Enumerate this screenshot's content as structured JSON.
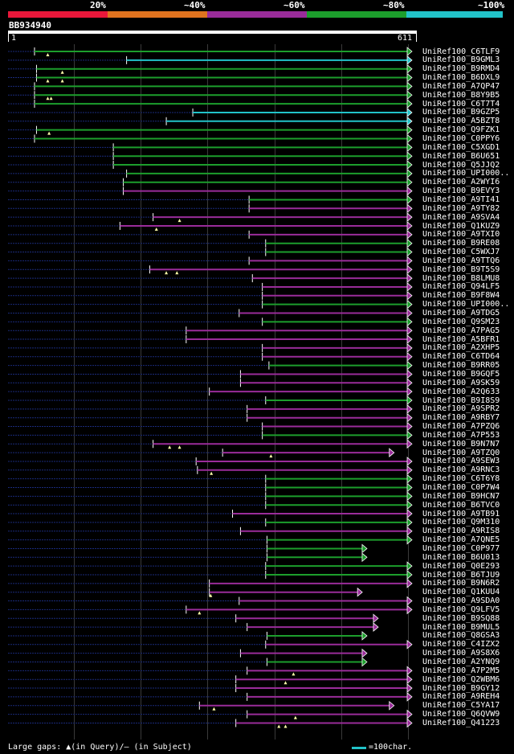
{
  "identity_bands": [
    {
      "label": "20%",
      "color": "#e8173a"
    },
    {
      "label": "~40%",
      "color": "#e0731f"
    },
    {
      "label": "~60%",
      "color": "#9a2c9a"
    },
    {
      "label": "~80%",
      "color": "#1c9e2c"
    },
    {
      "label": "~100%",
      "color": "#22c3c9"
    }
  ],
  "query": {
    "id": "BB934940",
    "start": "1",
    "end": "611",
    "length": 611
  },
  "legend": {
    "gaps_text": "Large gaps: ▲(in Query)/– (in Subject)",
    "scale_text": "=100char."
  },
  "hits": [
    {
      "name": "UniRef100_C6TLF9",
      "start": 41,
      "end": 611,
      "color": "green",
      "arrow": "right",
      "gaps": [
        [
          200,
          0.05
        ]
      ],
      "query_gaps": [
        61
      ]
    },
    {
      "name": "UniRef100_B9GML3",
      "start": 180,
      "end": 611,
      "color": "cyan",
      "arrow": "right",
      "gaps": [],
      "query_gaps": []
    },
    {
      "name": "UniRef100_B9RMD4",
      "start": 44,
      "end": 611,
      "color": "green",
      "arrow": "right",
      "gaps": [
        [
          200,
          0.05
        ]
      ],
      "query_gaps": [
        83
      ]
    },
    {
      "name": "UniRef100_B6DXL9",
      "start": 44,
      "end": 611,
      "color": "green",
      "arrow": "right",
      "gaps": [
        [
          200,
          0.05
        ]
      ],
      "query_gaps": [
        61,
        83
      ]
    },
    {
      "name": "UniRef100_A7QP47",
      "start": 41,
      "end": 611,
      "color": "green",
      "arrow": "right",
      "gaps": [
        [
          200,
          0.05
        ]
      ],
      "query_gaps": []
    },
    {
      "name": "UniRef100_B8Y9B5",
      "start": 41,
      "end": 611,
      "color": "green",
      "arrow": "right",
      "gaps": [
        [
          200,
          0.05
        ]
      ],
      "query_gaps": [
        61,
        66
      ]
    },
    {
      "name": "UniRef100_C6T7T4",
      "start": 41,
      "end": 611,
      "color": "green",
      "arrow": "right",
      "gaps": [
        [
          200,
          0.05
        ]
      ],
      "query_gaps": []
    },
    {
      "name": "UniRef100_B9GZP5",
      "start": 280,
      "end": 611,
      "color": "cyan",
      "arrow": "right",
      "gaps": [],
      "query_gaps": []
    },
    {
      "name": "UniRef100_A5BZT8",
      "start": 240,
      "end": 611,
      "color": "cyan",
      "arrow": "right",
      "gaps": [],
      "query_gaps": []
    },
    {
      "name": "UniRef100_Q9FZK1",
      "start": 44,
      "end": 611,
      "color": "green",
      "arrow": "right",
      "gaps": [
        [
          200,
          0.05
        ]
      ],
      "query_gaps": [
        63
      ]
    },
    {
      "name": "UniRef100_C0PPY6",
      "start": 41,
      "end": 611,
      "color": "green",
      "arrow": "right",
      "gaps": [
        [
          200,
          0.05
        ]
      ],
      "query_gaps": []
    },
    {
      "name": "UniRef100_C5XGD1",
      "start": 160,
      "end": 611,
      "color": "green",
      "arrow": "right",
      "gaps": [],
      "query_gaps": []
    },
    {
      "name": "UniRef100_B6U651",
      "start": 160,
      "end": 611,
      "color": "green",
      "arrow": "right",
      "gaps": [],
      "query_gaps": []
    },
    {
      "name": "UniRef100_Q5JJQ2",
      "start": 160,
      "end": 611,
      "color": "green",
      "arrow": "right",
      "gaps": [],
      "query_gaps": []
    },
    {
      "name": "UniRef100_UPI000..",
      "start": 180,
      "end": 611,
      "color": "green",
      "arrow": "right",
      "gaps": [],
      "query_gaps": []
    },
    {
      "name": "UniRef100_A2WYI6",
      "start": 175,
      "end": 611,
      "color": "green",
      "arrow": "right",
      "gaps": [],
      "query_gaps": []
    },
    {
      "name": "UniRef100_B9EVY3",
      "start": 175,
      "end": 611,
      "color": "purple",
      "arrow": "right",
      "gaps": [
        [
          235,
          0.05
        ]
      ],
      "query_gaps": []
    },
    {
      "name": "UniRef100_A9TI41",
      "start": 365,
      "end": 611,
      "color": "green",
      "arrow": "right",
      "gaps": [],
      "query_gaps": []
    },
    {
      "name": "UniRef100_A9TY82",
      "start": 365,
      "end": 611,
      "color": "purple",
      "arrow": "right",
      "gaps": [],
      "query_gaps": []
    },
    {
      "name": "UniRef100_A9SVA4",
      "start": 220,
      "end": 611,
      "color": "purple",
      "arrow": "right",
      "gaps": [],
      "query_gaps": [
        260
      ]
    },
    {
      "name": "UniRef100_Q1KUZ9",
      "start": 170,
      "end": 611,
      "color": "purple",
      "arrow": "right",
      "gaps": [],
      "query_gaps": [
        225
      ]
    },
    {
      "name": "UniRef100_A9TXI0",
      "start": 365,
      "end": 611,
      "color": "purple",
      "arrow": "right",
      "gaps": [],
      "query_gaps": []
    },
    {
      "name": "UniRef100_B9RE08",
      "start": 390,
      "end": 611,
      "color": "green",
      "arrow": "right",
      "gaps": [],
      "query_gaps": []
    },
    {
      "name": "UniRef100_C5WXJ7",
      "start": 390,
      "end": 611,
      "color": "green",
      "arrow": "right",
      "gaps": [],
      "query_gaps": []
    },
    {
      "name": "UniRef100_A9TTQ6",
      "start": 365,
      "end": 611,
      "color": "purple",
      "arrow": "right",
      "gaps": [],
      "query_gaps": []
    },
    {
      "name": "UniRef100_B9T5S9",
      "start": 215,
      "end": 611,
      "color": "purple",
      "arrow": "right",
      "gaps": [],
      "query_gaps": [
        240,
        256
      ]
    },
    {
      "name": "UniRef100_B8LMU8",
      "start": 370,
      "end": 611,
      "color": "purple",
      "arrow": "right",
      "gaps": [],
      "query_gaps": []
    },
    {
      "name": "UniRef100_Q94LF5",
      "start": 385,
      "end": 611,
      "color": "purple",
      "arrow": "right",
      "gaps": [],
      "query_gaps": []
    },
    {
      "name": "UniRef100_B9F8W4",
      "start": 385,
      "end": 611,
      "color": "purple",
      "arrow": "right",
      "gaps": [],
      "query_gaps": []
    },
    {
      "name": "UniRef100_UPI000..",
      "start": 385,
      "end": 611,
      "color": "green",
      "arrow": "right",
      "gaps": [],
      "query_gaps": []
    },
    {
      "name": "UniRef100_A9TDG5",
      "start": 350,
      "end": 611,
      "color": "purple",
      "arrow": "right",
      "gaps": [],
      "query_gaps": []
    },
    {
      "name": "UniRef100_Q9SM23",
      "start": 385,
      "end": 611,
      "color": "green",
      "arrow": "right",
      "gaps": [],
      "query_gaps": []
    },
    {
      "name": "UniRef100_A7PAG5",
      "start": 270,
      "end": 611,
      "color": "purple",
      "arrow": "right",
      "gaps": [],
      "query_gaps": []
    },
    {
      "name": "UniRef100_A5BFR1",
      "start": 270,
      "end": 611,
      "color": "purple",
      "arrow": "right",
      "gaps": [],
      "query_gaps": []
    },
    {
      "name": "UniRef100_A2XHP5",
      "start": 385,
      "end": 611,
      "color": "purple",
      "arrow": "right",
      "gaps": [],
      "query_gaps": []
    },
    {
      "name": "UniRef100_C6TD64",
      "start": 385,
      "end": 611,
      "color": "purple",
      "arrow": "right",
      "gaps": [],
      "query_gaps": []
    },
    {
      "name": "UniRef100_B9RR05",
      "start": 395,
      "end": 611,
      "color": "green",
      "arrow": "right",
      "gaps": [],
      "query_gaps": []
    },
    {
      "name": "UniRef100_B9GQF5",
      "start": 352,
      "end": 611,
      "color": "purple",
      "arrow": "right",
      "gaps": [],
      "query_gaps": []
    },
    {
      "name": "UniRef100_A9SK59",
      "start": 352,
      "end": 611,
      "color": "purple",
      "arrow": "right",
      "gaps": [],
      "query_gaps": []
    },
    {
      "name": "UniRef100_A2Q633",
      "start": 305,
      "end": 611,
      "color": "purple",
      "arrow": "right",
      "gaps": [],
      "query_gaps": []
    },
    {
      "name": "UniRef100_B9I8S9",
      "start": 390,
      "end": 611,
      "color": "green",
      "arrow": "right",
      "gaps": [],
      "query_gaps": []
    },
    {
      "name": "UniRef100_A9SPR2",
      "start": 362,
      "end": 611,
      "color": "purple",
      "arrow": "right",
      "gaps": [],
      "query_gaps": []
    },
    {
      "name": "UniRef100_A9RBY7",
      "start": 362,
      "end": 611,
      "color": "purple",
      "arrow": "right",
      "gaps": [],
      "query_gaps": []
    },
    {
      "name": "UniRef100_A7PZQ6",
      "start": 385,
      "end": 611,
      "color": "purple",
      "arrow": "right",
      "gaps": [],
      "query_gaps": []
    },
    {
      "name": "UniRef100_A7P553",
      "start": 385,
      "end": 611,
      "color": "green",
      "arrow": "right",
      "gaps": [],
      "query_gaps": []
    },
    {
      "name": "UniRef100_B9N7N7",
      "start": 220,
      "end": 611,
      "color": "purple",
      "arrow": "right",
      "gaps": [],
      "query_gaps": [
        245,
        260
      ]
    },
    {
      "name": "UniRef100_A9TZQ0",
      "start": 325,
      "end": 584,
      "color": "purple",
      "arrow": "right",
      "gaps": [],
      "query_gaps": [
        398
      ]
    },
    {
      "name": "UniRef100_A9SEW3",
      "start": 285,
      "end": 611,
      "color": "purple",
      "arrow": "right",
      "gaps": [],
      "query_gaps": []
    },
    {
      "name": "UniRef100_A9RNC3",
      "start": 287,
      "end": 611,
      "color": "purple",
      "arrow": "right",
      "gaps": [],
      "query_gaps": [
        308
      ]
    },
    {
      "name": "UniRef100_C6T6Y8",
      "start": 390,
      "end": 611,
      "color": "green",
      "arrow": "right",
      "gaps": [],
      "query_gaps": []
    },
    {
      "name": "UniRef100_C0P7W4",
      "start": 390,
      "end": 611,
      "color": "green",
      "arrow": "right",
      "gaps": [],
      "query_gaps": []
    },
    {
      "name": "UniRef100_B9HCN7",
      "start": 390,
      "end": 611,
      "color": "green",
      "arrow": "right",
      "gaps": [],
      "query_gaps": []
    },
    {
      "name": "UniRef100_B6TVC0",
      "start": 390,
      "end": 611,
      "color": "green",
      "arrow": "right",
      "gaps": [],
      "query_gaps": []
    },
    {
      "name": "UniRef100_A9TB91",
      "start": 340,
      "end": 611,
      "color": "purple",
      "arrow": "right",
      "gaps": [],
      "query_gaps": []
    },
    {
      "name": "UniRef100_Q9M310",
      "start": 390,
      "end": 611,
      "color": "green",
      "arrow": "right",
      "gaps": [],
      "query_gaps": []
    },
    {
      "name": "UniRef100_A9RIS8",
      "start": 352,
      "end": 611,
      "color": "purple",
      "arrow": "right",
      "gaps": [],
      "query_gaps": []
    },
    {
      "name": "UniRef100_A7QNE5",
      "start": 392,
      "end": 611,
      "color": "green",
      "arrow": "right",
      "gaps": [],
      "query_gaps": []
    },
    {
      "name": "UniRef100_C0P977",
      "start": 392,
      "end": 543,
      "color": "green",
      "arrow": "right",
      "gaps": [],
      "query_gaps": []
    },
    {
      "name": "UniRef100_B6U013",
      "start": 392,
      "end": 543,
      "color": "green",
      "arrow": "right",
      "gaps": [],
      "query_gaps": []
    },
    {
      "name": "UniRef100_Q0E293",
      "start": 390,
      "end": 611,
      "color": "green",
      "arrow": "right",
      "gaps": [],
      "query_gaps": []
    },
    {
      "name": "UniRef100_B6TJU9",
      "start": 390,
      "end": 611,
      "color": "green",
      "arrow": "right",
      "gaps": [],
      "query_gaps": []
    },
    {
      "name": "UniRef100_B9N6R2",
      "start": 305,
      "end": 611,
      "color": "purple",
      "arrow": "right",
      "gaps": [],
      "query_gaps": []
    },
    {
      "name": "UniRef100_Q1KUU4",
      "start": 305,
      "end": 536,
      "color": "purple",
      "arrow": "right",
      "gaps": [],
      "query_gaps": [
        307
      ]
    },
    {
      "name": "UniRef100_A9SDA0",
      "start": 350,
      "end": 611,
      "color": "purple",
      "arrow": "right",
      "gaps": [],
      "query_gaps": []
    },
    {
      "name": "UniRef100_Q9LFV5",
      "start": 270,
      "end": 611,
      "color": "purple",
      "arrow": "right",
      "gaps": [],
      "query_gaps": [
        290
      ]
    },
    {
      "name": "UniRef100_B9SQ88",
      "start": 345,
      "end": 560,
      "color": "purple",
      "arrow": "right",
      "gaps": [],
      "query_gaps": []
    },
    {
      "name": "UniRef100_B9MUL5",
      "start": 362,
      "end": 560,
      "color": "purple",
      "arrow": "right",
      "gaps": [],
      "query_gaps": []
    },
    {
      "name": "UniRef100_Q8GSA3",
      "start": 392,
      "end": 543,
      "color": "green",
      "arrow": "right",
      "gaps": [],
      "query_gaps": []
    },
    {
      "name": "UniRef100_C4IZX2",
      "start": 390,
      "end": 611,
      "color": "purple",
      "arrow": "right",
      "gaps": [],
      "query_gaps": []
    },
    {
      "name": "UniRef100_A9S8X6",
      "start": 352,
      "end": 543,
      "color": "purple",
      "arrow": "right",
      "gaps": [],
      "query_gaps": []
    },
    {
      "name": "UniRef100_A2YNQ9",
      "start": 392,
      "end": 543,
      "color": "green",
      "arrow": "right",
      "gaps": [],
      "query_gaps": []
    },
    {
      "name": "UniRef100_A7P2M5",
      "start": 362,
      "end": 611,
      "color": "purple",
      "arrow": "right",
      "gaps": [],
      "query_gaps": [
        432
      ]
    },
    {
      "name": "UniRef100_Q2WBM6",
      "start": 345,
      "end": 611,
      "color": "purple",
      "arrow": "right",
      "gaps": [],
      "query_gaps": [
        420
      ]
    },
    {
      "name": "UniRef100_B9GY12",
      "start": 345,
      "end": 611,
      "color": "purple",
      "arrow": "right",
      "gaps": [],
      "query_gaps": []
    },
    {
      "name": "UniRef100_A9REH4",
      "start": 362,
      "end": 611,
      "color": "purple",
      "arrow": "right",
      "gaps": [],
      "query_gaps": []
    },
    {
      "name": "UniRef100_C5YA17",
      "start": 290,
      "end": 584,
      "color": "purple",
      "arrow": "right",
      "gaps": [],
      "query_gaps": [
        312
      ]
    },
    {
      "name": "UniRef100_Q6QVW9",
      "start": 362,
      "end": 611,
      "color": "purple",
      "arrow": "right",
      "gaps": [],
      "query_gaps": [
        435
      ]
    },
    {
      "name": "UniRef100_Q41223",
      "start": 345,
      "end": 611,
      "color": "purple",
      "arrow": "right",
      "gaps": [],
      "query_gaps": [
        410,
        420
      ]
    }
  ]
}
